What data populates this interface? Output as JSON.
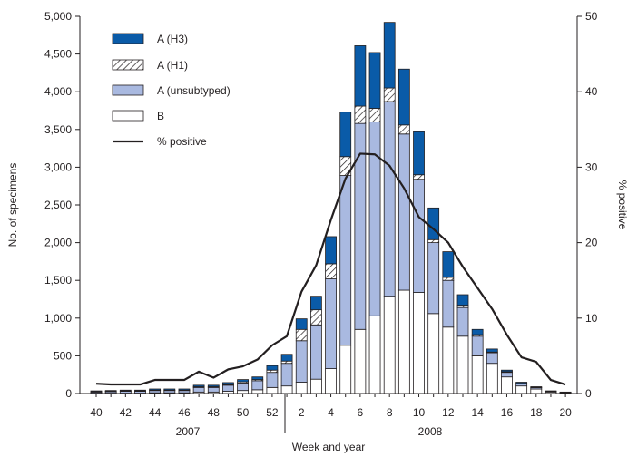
{
  "chart_data": {
    "type": "bar",
    "stacked": true,
    "categories": [
      "40",
      "41",
      "42",
      "43",
      "44",
      "45",
      "46",
      "47",
      "48",
      "49",
      "50",
      "51",
      "52",
      "1",
      "2",
      "3",
      "4",
      "5",
      "6",
      "7",
      "8",
      "9",
      "10",
      "11",
      "12",
      "13",
      "14",
      "15",
      "16",
      "17",
      "18",
      "19",
      "20"
    ],
    "x_tick_labels": [
      "40",
      "42",
      "44",
      "46",
      "48",
      "50",
      "52",
      "2",
      "4",
      "6",
      "8",
      "10",
      "12",
      "14",
      "16",
      "18",
      "20"
    ],
    "year_labels": [
      "2007",
      "2008"
    ],
    "xlabel": "Week and year",
    "ylabel": "No. of specimens",
    "y2label": "% positive",
    "ylim": [
      0,
      5000
    ],
    "y2lim": [
      0,
      50
    ],
    "y_ticks": [
      "0",
      "500",
      "1,000",
      "1,500",
      "2,000",
      "2,500",
      "3,000",
      "3,500",
      "4,000",
      "4,500",
      "5,000"
    ],
    "y2_ticks": [
      "0",
      "10",
      "20",
      "30",
      "40",
      "50"
    ],
    "series": [
      {
        "name": "B",
        "color": "#ffffff",
        "pattern": "solid",
        "values": [
          5,
          5,
          5,
          5,
          10,
          10,
          10,
          20,
          20,
          30,
          40,
          50,
          80,
          100,
          150,
          190,
          330,
          640,
          850,
          1030,
          1290,
          1370,
          1340,
          1060,
          880,
          760,
          500,
          400,
          220,
          100,
          60,
          20,
          10
        ]
      },
      {
        "name": "A (unsubtyped)",
        "color": "#a9b9e0",
        "pattern": "solid",
        "values": [
          15,
          20,
          25,
          25,
          30,
          30,
          30,
          60,
          60,
          80,
          100,
          120,
          200,
          300,
          550,
          720,
          1190,
          2250,
          2730,
          2570,
          2580,
          2070,
          1500,
          940,
          620,
          380,
          260,
          140,
          60,
          30,
          20,
          10,
          8
        ]
      },
      {
        "name": "A (H1)",
        "color": "#ffffff",
        "pattern": "hatch",
        "values": [
          5,
          5,
          5,
          5,
          5,
          5,
          5,
          10,
          10,
          10,
          15,
          15,
          30,
          30,
          150,
          200,
          200,
          250,
          230,
          180,
          180,
          120,
          60,
          40,
          40,
          30,
          20,
          10,
          10,
          5,
          3,
          2,
          1
        ]
      },
      {
        "name": "A (H3)",
        "color": "#0a5ba8",
        "pattern": "solid",
        "values": [
          10,
          10,
          10,
          10,
          15,
          15,
          15,
          20,
          20,
          25,
          30,
          35,
          60,
          90,
          140,
          180,
          360,
          590,
          800,
          740,
          870,
          740,
          570,
          420,
          340,
          140,
          70,
          40,
          20,
          15,
          7,
          3,
          1
        ]
      }
    ],
    "line_series": {
      "name": "% positive",
      "color": "#231f20",
      "values": [
        1.3,
        1.2,
        1.2,
        1.2,
        1.8,
        1.8,
        1.8,
        2.9,
        2.1,
        3.2,
        3.6,
        4.5,
        6.4,
        7.6,
        13.5,
        17.0,
        23.0,
        28.5,
        31.8,
        31.7,
        30.2,
        27.2,
        23.4,
        21.8,
        20.0,
        16.8,
        14.0,
        11.2,
        7.8,
        4.8,
        4.2,
        1.8,
        1.2
      ]
    },
    "legend": {
      "position": "top-left",
      "items": [
        "A (H3)",
        "A (H1)",
        "A (unsubtyped)",
        "B",
        "% positive"
      ]
    },
    "grid": false
  }
}
